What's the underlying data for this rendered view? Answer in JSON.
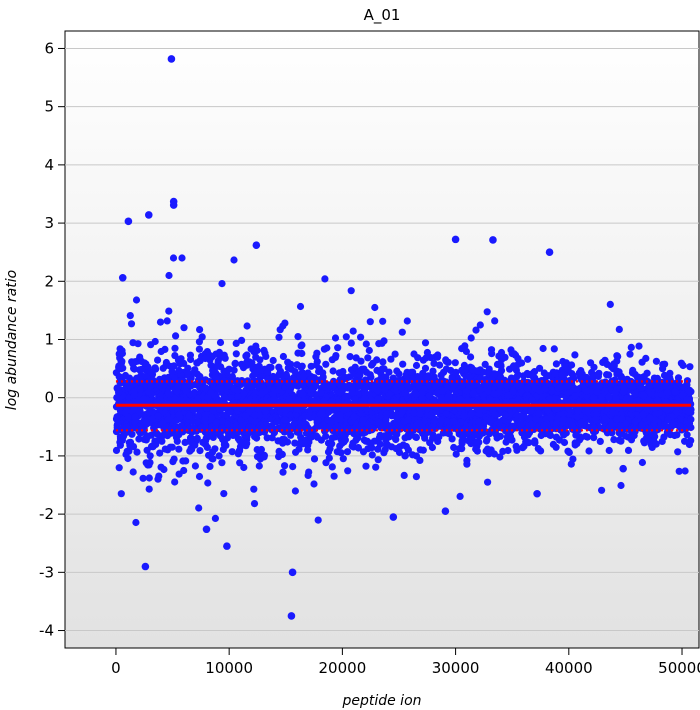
{
  "chart_data": {
    "type": "scatter",
    "title": "A_01",
    "xlabel": "peptide ion",
    "ylabel": "log abundance ratio",
    "xlim": [
      -4500,
      51500
    ],
    "ylim": [
      -4.3,
      6.3
    ],
    "xticks": [
      0,
      10000,
      20000,
      30000,
      40000,
      50000
    ],
    "yticks": [
      -4,
      -3,
      -2,
      -1,
      0,
      1,
      2,
      3,
      4,
      5,
      6
    ],
    "grid": true,
    "point_color": "#1a1aff",
    "point_count": 51000,
    "median_line": {
      "y": -0.13,
      "color": "#ff0000",
      "style": "solid"
    },
    "threshold_lines": [
      {
        "y": 0.28,
        "color": "#ff0000",
        "style": "dotted"
      },
      {
        "y": -0.56,
        "color": "#ff0000",
        "style": "dotted"
      }
    ],
    "highlighted_points": [
      {
        "x": 4900,
        "y": 5.82
      },
      {
        "x": 5100,
        "y": 3.37
      },
      {
        "x": 5100,
        "y": 3.31
      },
      {
        "x": 1100,
        "y": 3.03
      },
      {
        "x": 2900,
        "y": 3.14
      },
      {
        "x": 12400,
        "y": 2.62
      },
      {
        "x": 33300,
        "y": 2.71
      },
      {
        "x": 30000,
        "y": 2.72
      },
      {
        "x": 38300,
        "y": 2.5
      },
      {
        "x": 600,
        "y": 2.06
      },
      {
        "x": 2600,
        "y": -2.9
      },
      {
        "x": 15600,
        "y": -3.0
      },
      {
        "x": 15500,
        "y": -3.75
      },
      {
        "x": 9800,
        "y": -2.55
      },
      {
        "x": 8000,
        "y": -2.26
      },
      {
        "x": 24500,
        "y": -2.05
      },
      {
        "x": 29100,
        "y": -1.95
      },
      {
        "x": 37200,
        "y": -1.65
      },
      {
        "x": 44800,
        "y": -1.22
      }
    ]
  }
}
